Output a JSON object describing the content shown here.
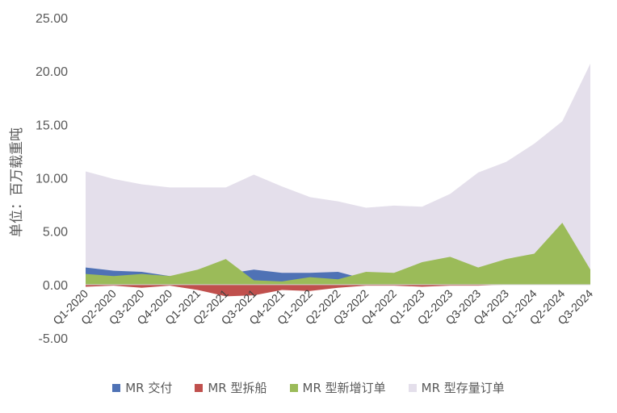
{
  "chart_data": {
    "type": "area",
    "ylabel": "单位：百万载重吨",
    "ylim": [
      -5,
      25
    ],
    "yticks": [
      "25.00",
      "20.00",
      "15.00",
      "10.00",
      "5.00",
      "0.00",
      "-5.00"
    ],
    "categories": [
      "Q1-2020",
      "Q2-2020",
      "Q3-2020",
      "Q4-2020",
      "Q1-2021",
      "Q2-2021",
      "Q3-2021",
      "Q4-2021",
      "Q1-2022",
      "Q2-2022",
      "Q3-2022",
      "Q4-2022",
      "Q1-2023",
      "Q2-2023",
      "Q3-2023",
      "Q4-2023",
      "Q1-2024",
      "Q2-2024",
      "Q3-2024"
    ],
    "series": [
      {
        "name": "MR 型存量订单",
        "color": "#e4dfeb",
        "values": [
          10.6,
          9.9,
          9.4,
          9.1,
          9.1,
          9.1,
          10.3,
          9.2,
          8.2,
          7.8,
          7.2,
          7.4,
          7.3,
          8.5,
          10.5,
          11.5,
          13.2,
          15.3,
          20.7
        ]
      },
      {
        "name": "MR 交付",
        "color": "#4f72b5",
        "values": [
          1.6,
          1.3,
          1.2,
          0.8,
          0.5,
          1.0,
          1.4,
          1.1,
          1.1,
          1.2,
          0.5,
          0.5,
          0.6,
          0.8,
          0.6,
          0.5,
          0.5,
          0.5,
          0.5
        ]
      },
      {
        "name": "MR 型新增订单",
        "color": "#9bbb59",
        "values": [
          1.0,
          0.8,
          1.0,
          0.8,
          1.4,
          2.4,
          0.4,
          0.3,
          0.7,
          0.5,
          1.2,
          1.1,
          2.1,
          2.6,
          1.6,
          2.4,
          2.9,
          5.8,
          1.4
        ]
      },
      {
        "name": "MR 型拆船",
        "color": "#c0504d",
        "values": [
          -0.2,
          -0.1,
          -0.3,
          -0.1,
          -0.5,
          -1.1,
          -1.0,
          -0.5,
          -0.6,
          -0.3,
          -0.1,
          -0.1,
          -0.2,
          -0.1,
          -0.1,
          0,
          0,
          0,
          0
        ]
      }
    ],
    "legend_order": [
      "MR 交付",
      "MR 型拆船",
      "MR 型新增订单",
      "MR 型存量订单"
    ],
    "legend_position": "bottom",
    "grid": false
  },
  "legend": {
    "items": [
      {
        "label": "MR 交付",
        "color": "#4f72b5"
      },
      {
        "label": "MR 型拆船",
        "color": "#c0504d"
      },
      {
        "label": "MR 型新增订单",
        "color": "#9bbb59"
      },
      {
        "label": "MR 型存量订单",
        "color": "#e4dfeb"
      }
    ]
  }
}
